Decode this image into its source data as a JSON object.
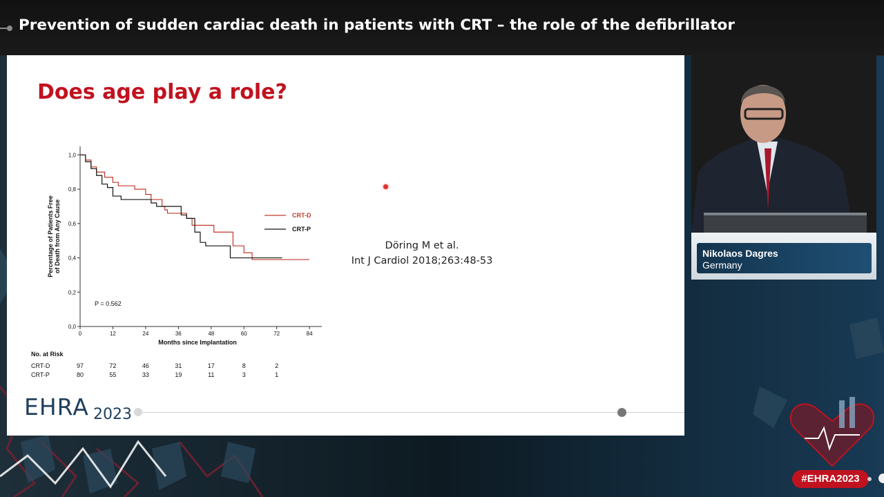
{
  "header": {
    "title": "Prevention of sudden cardiac death in patients with CRT – the role of the defibrillator"
  },
  "slide": {
    "title": "Does age play a role?",
    "reference_line1": "Döring M et al.",
    "reference_line2": "Int J Cardiol 2018;263:48-53",
    "logo_text": "EHRA",
    "logo_year": "2023"
  },
  "speaker": {
    "name": "Nikolaos Dagres",
    "country": "Germany"
  },
  "hashtag": "#EHRA2023",
  "colors": {
    "accent_red": "#c1121f",
    "crt_d": "#c0392b",
    "crt_p": "#111111",
    "navy": "#1f3f5c"
  },
  "chart_data": {
    "type": "line",
    "ylabel": "Percentage of Patients Free of Death from Any Cause",
    "xlabel": "Months since Implantation",
    "x_ticks": [
      0,
      12,
      24,
      36,
      48,
      60,
      72,
      84
    ],
    "y_ticks": [
      "0,0",
      "0,2",
      "0,4",
      "0,6",
      "0,8",
      "1,0"
    ],
    "xlim": [
      0,
      86
    ],
    "ylim": [
      0,
      1.05
    ],
    "p_value": "P = 0.562",
    "series": [
      {
        "name": "CRT-D",
        "color": "#c0392b",
        "points": [
          [
            0,
            1.0
          ],
          [
            2,
            0.97
          ],
          [
            4,
            0.93
          ],
          [
            6,
            0.9
          ],
          [
            9,
            0.87
          ],
          [
            12,
            0.84
          ],
          [
            14,
            0.82
          ],
          [
            19,
            0.82
          ],
          [
            20,
            0.8
          ],
          [
            24,
            0.77
          ],
          [
            26,
            0.74
          ],
          [
            30,
            0.7
          ],
          [
            31,
            0.68
          ],
          [
            32,
            0.66
          ],
          [
            37,
            0.66
          ],
          [
            39,
            0.63
          ],
          [
            41,
            0.59
          ],
          [
            48,
            0.59
          ],
          [
            49,
            0.55
          ],
          [
            55,
            0.55
          ],
          [
            56,
            0.47
          ],
          [
            59,
            0.47
          ],
          [
            60,
            0.43
          ],
          [
            62,
            0.43
          ],
          [
            63,
            0.39
          ],
          [
            72,
            0.39
          ],
          [
            84,
            0.39
          ]
        ]
      },
      {
        "name": "CRT-P",
        "color": "#111111",
        "points": [
          [
            0,
            1.0
          ],
          [
            2,
            0.96
          ],
          [
            4,
            0.92
          ],
          [
            6,
            0.88
          ],
          [
            8,
            0.83
          ],
          [
            10,
            0.81
          ],
          [
            12,
            0.76
          ],
          [
            15,
            0.74
          ],
          [
            24,
            0.74
          ],
          [
            26,
            0.72
          ],
          [
            28,
            0.7
          ],
          [
            35,
            0.7
          ],
          [
            37,
            0.65
          ],
          [
            39,
            0.63
          ],
          [
            42,
            0.55
          ],
          [
            44,
            0.49
          ],
          [
            46,
            0.47
          ],
          [
            54,
            0.47
          ],
          [
            55,
            0.4
          ],
          [
            64,
            0.4
          ],
          [
            74,
            0.4
          ]
        ]
      }
    ],
    "at_risk": {
      "header": "No. at Risk",
      "rows": [
        {
          "label": "CRT-D",
          "values": [
            97,
            72,
            46,
            31,
            17,
            8,
            2
          ]
        },
        {
          "label": "CRT-P",
          "values": [
            80,
            55,
            33,
            19,
            11,
            3,
            1
          ]
        }
      ]
    }
  }
}
